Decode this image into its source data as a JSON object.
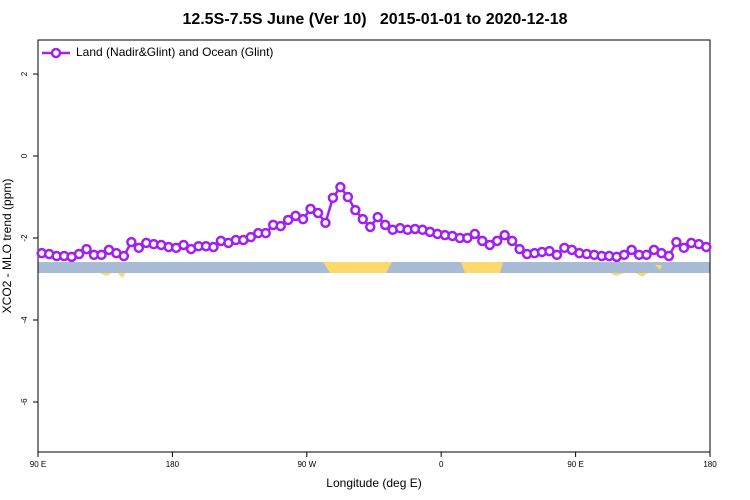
{
  "chart_data": {
    "type": "line",
    "title": "12.5S-7.5S June (Ver 10)   2015-01-01 to 2020-12-18",
    "x_label": "Longitude (deg E)",
    "y_label": "XCO2 - MLO trend (ppm)",
    "xlim": [
      90,
      540
    ],
    "ylim": [
      -7.22,
      2.83
    ],
    "xticks": [
      {
        "value": 90,
        "label": "90 E"
      },
      180,
      {
        "value": 270,
        "label": "90 W"
      },
      {
        "value": 360,
        "label": "0"
      },
      {
        "value": 450,
        "label": "90 E"
      },
      {
        "value": 540,
        "label": "180"
      }
    ],
    "yticks": [
      -6,
      -4,
      -2,
      0,
      2
    ],
    "legend": "top-left",
    "x": [
      92.5,
      97.5,
      102.5,
      107.5,
      112.5,
      117.5,
      122.5,
      127.5,
      132.5,
      137.5,
      142.5,
      147.5,
      152.5,
      157.5,
      162.5,
      167.5,
      172.5,
      177.5,
      182.5,
      187.5,
      192.5,
      197.5,
      202.5,
      207.5,
      212.5,
      217.5,
      222.5,
      227.5,
      232.5,
      237.5,
      242.5,
      247.5,
      252.5,
      257.5,
      262.5,
      267.5,
      272.5,
      277.5,
      282.5,
      287.5,
      292.5,
      297.5,
      302.5,
      307.5,
      312.5,
      317.5,
      322.5,
      327.5,
      332.5,
      337.5,
      342.5,
      347.5,
      352.5,
      357.5,
      362.5,
      367.5,
      372.5,
      377.5,
      382.5,
      387.5,
      392.5,
      397.5,
      402.5,
      407.5,
      412.5,
      417.5,
      422.5,
      427.5,
      432.5,
      437.5,
      442.5,
      447.5,
      452.5,
      457.5,
      462.5,
      467.5,
      472.5,
      477.5,
      482.5,
      487.5,
      492.5,
      497.5,
      502.5,
      507.5,
      512.5,
      517.5,
      522.5,
      527.5,
      532.5,
      537.5
    ],
    "series": [
      {
        "name": "Land (Nadir&Glint) and Ocean (Glint)",
        "color": "#a020f0",
        "values": [
          -2.37,
          -2.39,
          -2.44,
          -2.44,
          -2.46,
          -2.39,
          -2.27,
          -2.41,
          -2.41,
          -2.29,
          -2.37,
          -2.44,
          -2.1,
          -2.24,
          -2.12,
          -2.15,
          -2.17,
          -2.22,
          -2.24,
          -2.17,
          -2.27,
          -2.2,
          -2.2,
          -2.22,
          -2.07,
          -2.12,
          -2.05,
          -2.05,
          -1.98,
          -1.88,
          -1.88,
          -1.68,
          -1.71,
          -1.56,
          -1.46,
          -1.54,
          -1.29,
          -1.39,
          -1.63,
          -1.02,
          -0.76,
          -1.0,
          -1.32,
          -1.54,
          -1.73,
          -1.49,
          -1.68,
          -1.8,
          -1.76,
          -1.8,
          -1.78,
          -1.8,
          -1.85,
          -1.9,
          -1.93,
          -1.95,
          -2.0,
          -2.0,
          -1.9,
          -2.07,
          -2.17,
          -2.07,
          -1.93,
          -2.07,
          -2.27,
          -2.39,
          -2.37,
          -2.34,
          -2.32,
          -2.41,
          -2.24,
          -2.29,
          -2.37,
          -2.39,
          -2.41,
          -2.44,
          -2.44,
          -2.46,
          -2.41,
          -2.29,
          -2.41,
          -2.41,
          -2.29,
          -2.37,
          -2.44,
          -2.1,
          -2.24,
          -2.12,
          -2.15,
          -2.22
        ]
      }
    ]
  }
}
